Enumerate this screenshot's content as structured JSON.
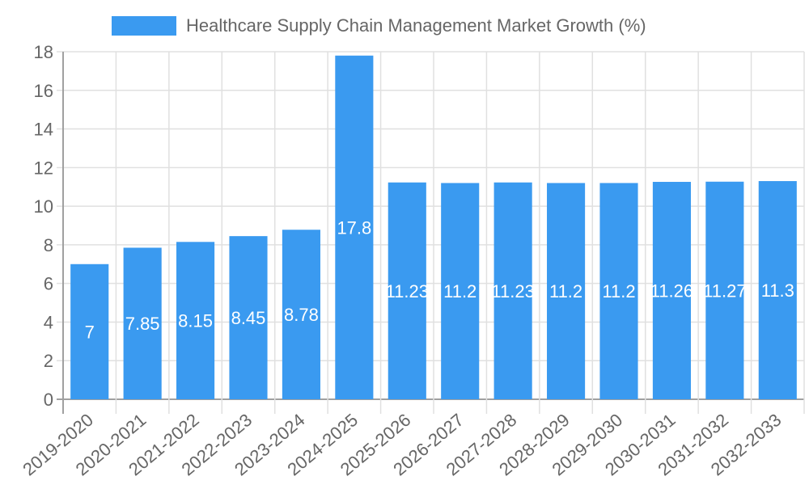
{
  "chart_data": {
    "type": "bar",
    "title": "",
    "legend": {
      "position": "top",
      "entries": [
        "Healthcare Supply Chain Management Market Growth (%)"
      ]
    },
    "categories": [
      "2019-2020",
      "2020-2021",
      "2021-2022",
      "2022-2023",
      "2023-2024",
      "2024-2025",
      "2025-2026",
      "2026-2027",
      "2027-2028",
      "2028-2029",
      "2029-2030",
      "2030-2031",
      "2031-2032",
      "2032-2033"
    ],
    "series": [
      {
        "name": "Healthcare Supply Chain Management Market Growth (%)",
        "color": "#3a9af0",
        "values": [
          7,
          7.85,
          8.15,
          8.45,
          8.78,
          17.8,
          11.23,
          11.2,
          11.23,
          11.2,
          11.2,
          11.26,
          11.27,
          11.3
        ]
      }
    ],
    "xlabel": "",
    "ylabel": "",
    "ylim": [
      0,
      18
    ],
    "yticks": [
      0,
      2,
      4,
      6,
      8,
      10,
      12,
      14,
      16,
      18
    ],
    "grid": true,
    "data_labels": true
  },
  "colors": {
    "bar": "#3a9af0",
    "grid": "#e0e0e0",
    "axis": "#a0a0a0",
    "text": "#666666",
    "label": "#ffffff"
  }
}
